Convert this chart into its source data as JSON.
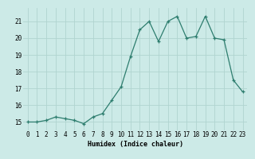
{
  "x": [
    0,
    1,
    2,
    3,
    4,
    5,
    6,
    7,
    8,
    9,
    10,
    11,
    12,
    13,
    14,
    15,
    16,
    17,
    18,
    19,
    20,
    21,
    22,
    23
  ],
  "y": [
    15.0,
    15.0,
    15.1,
    15.3,
    15.2,
    15.1,
    14.9,
    15.3,
    15.5,
    16.3,
    17.1,
    18.9,
    20.5,
    21.0,
    19.8,
    21.0,
    21.3,
    20.0,
    20.1,
    21.3,
    20.0,
    19.9,
    17.5,
    16.8
  ],
  "line_color": "#2d7d6e",
  "marker": "+",
  "marker_size": 3,
  "bg_color": "#cceae7",
  "grid_color": "#b0d4d0",
  "xlabel": "Humidex (Indice chaleur)",
  "ylabel_ticks": [
    15,
    16,
    17,
    18,
    19,
    20,
    21
  ],
  "xlim": [
    -0.5,
    23.5
  ],
  "ylim": [
    14.5,
    21.8
  ],
  "tick_fontsize": 5.5,
  "xlabel_fontsize": 6.0
}
